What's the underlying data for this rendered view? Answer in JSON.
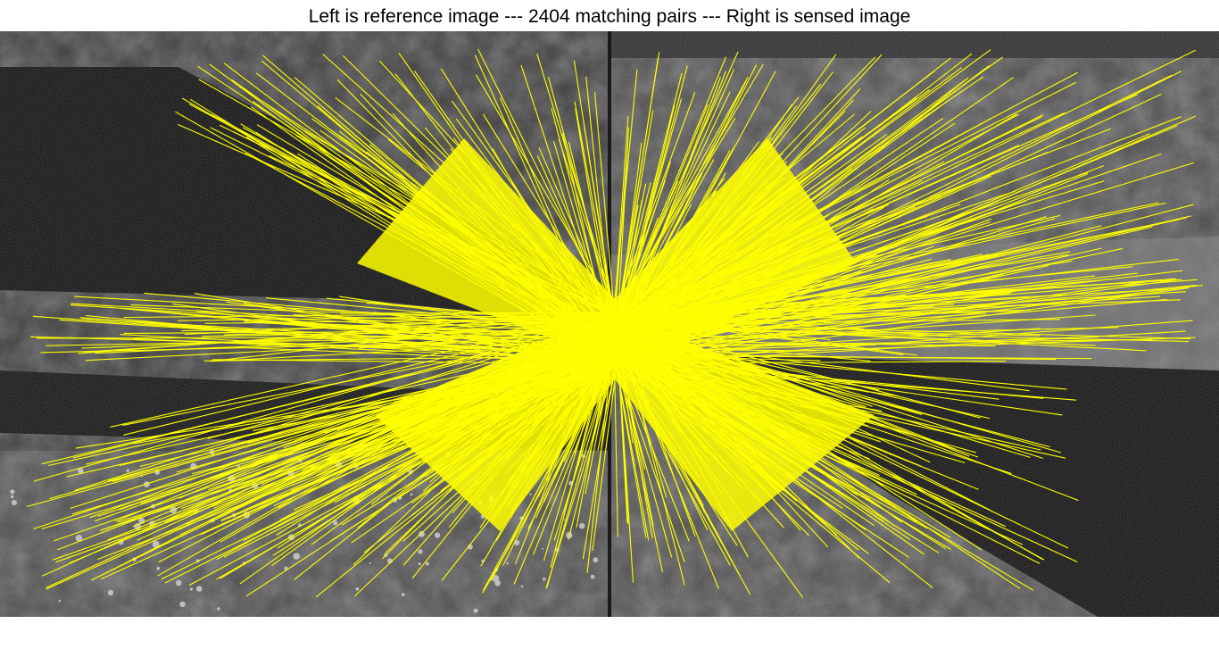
{
  "figure": {
    "title": "Left is reference image --- 2404 matching pairs --- Right is sensed image",
    "match_count": 2404,
    "panels": [
      {
        "role": "reference"
      },
      {
        "role": "sensed"
      }
    ],
    "line_color": "#ffff00",
    "background_color": "#ffffff",
    "water_color": "#080808"
  }
}
